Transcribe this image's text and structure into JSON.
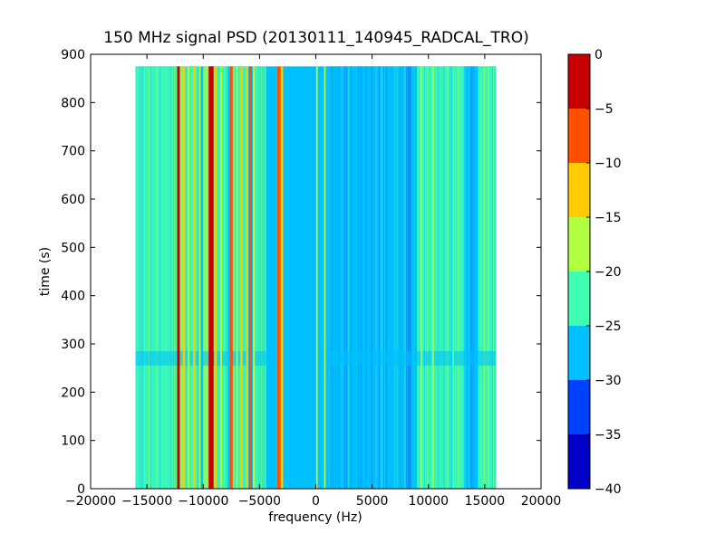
{
  "chart_data": {
    "type": "heatmap",
    "title": "150 MHz signal PSD (20130111_140945_RADCAL_TRO)",
    "xlabel": "frequency (Hz)",
    "ylabel": "time (s)",
    "xlim": [
      -20000,
      20000
    ],
    "ylim": [
      0,
      900
    ],
    "x_ticks": [
      -20000,
      -15000,
      -10000,
      -5000,
      0,
      5000,
      10000,
      15000,
      20000
    ],
    "y_ticks": [
      0,
      100,
      200,
      300,
      400,
      500,
      600,
      700,
      800,
      900
    ],
    "data_extent": {
      "x": [
        -16000,
        16000
      ],
      "y": [
        0,
        875
      ]
    },
    "grid": false,
    "colorbar": {
      "ticks": [
        0,
        -5,
        -10,
        -15,
        -20,
        -25,
        -30,
        -35,
        -40
      ],
      "range": [
        -40,
        0
      ],
      "levels": [
        {
          "from": -40,
          "to": -35,
          "color": "#0000c8"
        },
        {
          "from": -35,
          "to": -30,
          "color": "#0040ff"
        },
        {
          "from": -30,
          "to": -25,
          "color": "#00c0ff"
        },
        {
          "from": -25,
          "to": -20,
          "color": "#40ffb0"
        },
        {
          "from": -20,
          "to": -15,
          "color": "#b0ff40"
        },
        {
          "from": -15,
          "to": -10,
          "color": "#ffcc00"
        },
        {
          "from": -10,
          "to": -5,
          "color": "#ff5000"
        },
        {
          "from": -5,
          "to": 0,
          "color": "#c80000"
        }
      ]
    },
    "background_level": -27,
    "bands": [
      {
        "x": [
          -16000,
          -15600
        ],
        "level": -22
      },
      {
        "x": [
          -15600,
          -14200
        ],
        "level": -24
      },
      {
        "x": [
          -14200,
          -12400
        ],
        "level": -23
      },
      {
        "x": [
          -12400,
          -11800
        ],
        "level": -17
      },
      {
        "x": [
          -11600,
          -10400
        ],
        "level": -22
      },
      {
        "x": [
          -10000,
          -9000
        ],
        "level": -18
      },
      {
        "x": [
          -8800,
          -7800
        ],
        "level": -22
      },
      {
        "x": [
          -7600,
          -6200
        ],
        "level": -22
      },
      {
        "x": [
          -5600,
          -4400
        ],
        "level": -24
      },
      {
        "x": [
          1200,
          9000
        ],
        "level": -27
      },
      {
        "x": [
          9000,
          11200
        ],
        "level": -22
      },
      {
        "x": [
          11200,
          13200
        ],
        "level": -24
      },
      {
        "x": [
          13200,
          14400
        ],
        "level": -27
      },
      {
        "x": [
          14400,
          16000
        ],
        "level": -22
      }
    ],
    "lines": [
      {
        "x": -12200,
        "level": -3
      },
      {
        "x": -11700,
        "level": -12
      },
      {
        "x": -11300,
        "level": -16
      },
      {
        "x": -10800,
        "level": -13
      },
      {
        "x": -10300,
        "level": -18
      },
      {
        "x": -9400,
        "level": -4
      },
      {
        "x": -9200,
        "level": -2
      },
      {
        "x": -8900,
        "level": -14
      },
      {
        "x": -8400,
        "level": -16
      },
      {
        "x": -7500,
        "level": -8
      },
      {
        "x": -7000,
        "level": -15
      },
      {
        "x": -6600,
        "level": -12
      },
      {
        "x": -6100,
        "level": -14
      },
      {
        "x": -5800,
        "level": -7
      },
      {
        "x": -5500,
        "level": -16
      },
      {
        "x": -3300,
        "level": -6
      },
      {
        "x": -3000,
        "level": -14
      },
      {
        "x": 100,
        "level": -19
      },
      {
        "x": 800,
        "level": -16
      },
      {
        "x": 9400,
        "level": -19
      },
      {
        "x": 10400,
        "level": -19
      },
      {
        "x": 12200,
        "level": -21
      }
    ],
    "events": [
      {
        "time": [
          255,
          285
        ],
        "level": -26
      }
    ]
  }
}
